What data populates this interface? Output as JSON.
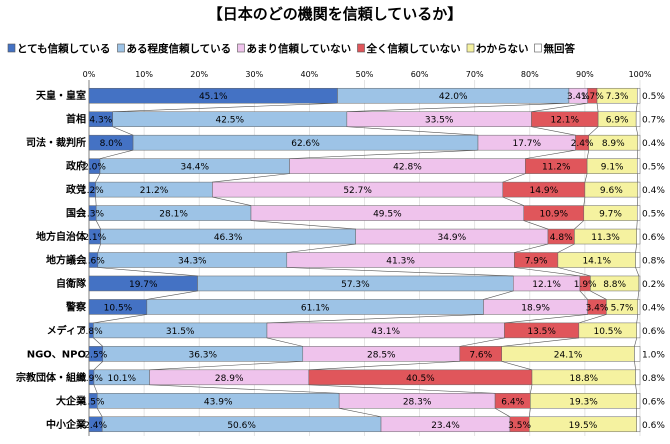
{
  "chart_data": {
    "type": "bar",
    "stacked": "percent",
    "orientation": "horizontal",
    "title": "【日本のどの機関を信頼しているか】",
    "xlim": [
      0,
      100
    ],
    "x_ticks": [
      "0%",
      "10%",
      "20%",
      "30%",
      "40%",
      "50%",
      "60%",
      "70%",
      "80%",
      "90%",
      "100%"
    ],
    "legend_position": "top",
    "categories": [
      "天皇・皇室",
      "首相",
      "司法・裁判所",
      "政府",
      "政党",
      "国会",
      "地方自治体",
      "地方議会",
      "自衛隊",
      "警察",
      "メディア",
      "NGO、NPO",
      "宗教団体・組織",
      "大企業",
      "中小企業"
    ],
    "series": [
      {
        "name": "とても信頼している",
        "color": "#4472c4",
        "values": [
          45.1,
          4.3,
          8.0,
          2.0,
          1.2,
          1.3,
          2.1,
          1.6,
          19.7,
          10.5,
          0.8,
          2.5,
          0.9,
          1.5,
          2.4
        ]
      },
      {
        "name": "ある程度信頼している",
        "color": "#9dc3e6",
        "values": [
          42.0,
          42.5,
          62.6,
          34.4,
          21.2,
          28.1,
          46.3,
          34.3,
          57.3,
          61.1,
          31.5,
          36.3,
          10.1,
          43.9,
          50.6
        ]
      },
      {
        "name": "あまり信頼していない",
        "color": "#efc3ec",
        "values": [
          3.4,
          33.5,
          17.7,
          42.8,
          52.7,
          49.5,
          34.9,
          41.3,
          12.1,
          18.9,
          43.1,
          28.5,
          28.9,
          28.3,
          23.4
        ]
      },
      {
        "name": "全く信頼していない",
        "color": "#e0565b",
        "values": [
          1.7,
          12.1,
          2.4,
          11.2,
          14.9,
          10.9,
          4.8,
          7.9,
          1.9,
          3.4,
          13.5,
          7.6,
          40.5,
          6.4,
          3.5
        ]
      },
      {
        "name": "わからない",
        "color": "#f5f2a0",
        "values": [
          7.3,
          6.9,
          8.9,
          9.1,
          9.6,
          9.7,
          11.3,
          14.1,
          8.8,
          5.7,
          10.5,
          24.1,
          18.8,
          19.3,
          19.5
        ]
      },
      {
        "name": "無回答",
        "color": "#ffffff",
        "values": [
          0.5,
          0.7,
          0.4,
          0.5,
          0.4,
          0.5,
          0.6,
          0.8,
          0.2,
          0.4,
          0.6,
          1.0,
          0.8,
          0.6,
          0.6
        ]
      }
    ]
  }
}
